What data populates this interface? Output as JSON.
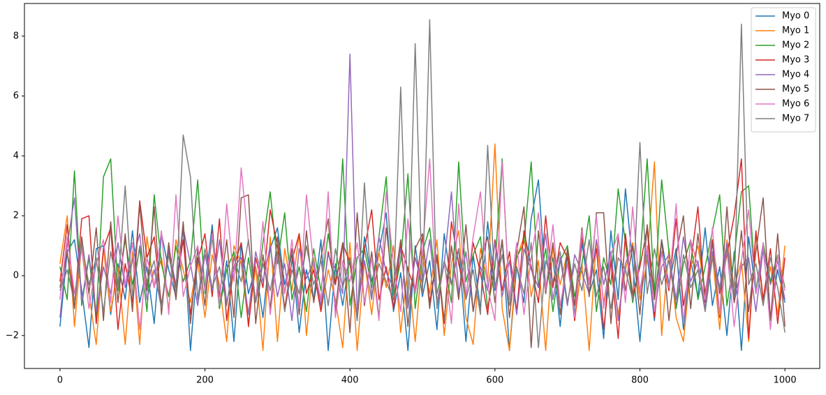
{
  "chart_data": {
    "type": "line",
    "x": [
      0,
      10,
      20,
      30,
      40,
      50,
      60,
      70,
      80,
      90,
      100,
      110,
      120,
      130,
      140,
      150,
      160,
      170,
      180,
      190,
      200,
      210,
      220,
      230,
      240,
      250,
      260,
      270,
      280,
      290,
      300,
      310,
      320,
      330,
      340,
      350,
      360,
      370,
      380,
      390,
      400,
      410,
      420,
      430,
      440,
      450,
      460,
      470,
      480,
      490,
      500,
      510,
      520,
      530,
      540,
      550,
      560,
      570,
      580,
      590,
      600,
      610,
      620,
      630,
      640,
      650,
      660,
      670,
      680,
      690,
      700,
      710,
      720,
      730,
      740,
      750,
      760,
      770,
      780,
      790,
      800,
      810,
      820,
      830,
      840,
      850,
      860,
      870,
      880,
      890,
      900,
      910,
      920,
      930,
      940,
      950,
      960,
      970,
      980,
      990,
      1000
    ],
    "series": [
      {
        "name": "Myo 0",
        "color": "#1f77b4",
        "values": [
          -1.7,
          0.8,
          1.2,
          -0.5,
          -2.4,
          0.9,
          1.0,
          -1.3,
          0.4,
          -0.8,
          1.5,
          -0.9,
          0.3,
          -1.6,
          1.4,
          0.2,
          -0.7,
          1.6,
          -2.5,
          0.6,
          -0.4,
          1.7,
          -1.1,
          0.5,
          -2.2,
          1.1,
          -0.6,
          0.3,
          -1.4,
          0.9,
          1.6,
          -0.3,
          0.7,
          -1.9,
          0.2,
          -0.8,
          1.2,
          -2.5,
          0.4,
          -1.0,
          0.6,
          -1.5,
          1.3,
          -0.2,
          0.8,
          2.1,
          -1.2,
          0.1,
          -2.5,
          1.0,
          -0.7,
          0.5,
          -1.8,
          1.4,
          -0.3,
          0.9,
          -2.2,
          0.7,
          -1.1,
          1.8,
          -0.5,
          1.2,
          -2.5,
          0.3,
          -0.9,
          1.9,
          3.2,
          -0.4,
          0.6,
          -1.7,
          0.8,
          -1.3,
          1.1,
          -0.6,
          0.2,
          -2.1,
          1.5,
          -0.8,
          2.9,
          0.4,
          -2.2,
          0.7,
          -1.5,
          1.2,
          -0.3,
          0.9,
          -1.8,
          0.5,
          -0.7,
          1.6,
          -1.0,
          0.3,
          -2.0,
          0.8,
          -2.5,
          1.3,
          -0.6,
          0.9,
          -1.4,
          0.2,
          -0.9
        ]
      },
      {
        "name": "Myo 1",
        "color": "#ff7f0e",
        "values": [
          0.4,
          2.0,
          -1.7,
          1.1,
          -0.6,
          -2.3,
          0.9,
          -1.2,
          0.3,
          -2.3,
          0.8,
          -2.3,
          1.3,
          -0.4,
          0.6,
          -1.1,
          1.2,
          0.2,
          -0.9,
          0.5,
          -1.4,
          0.7,
          -0.3,
          -2.2,
          1.0,
          0.4,
          -1.6,
          0.3,
          -2.5,
          1.3,
          -2.2,
          0.9,
          -0.5,
          1.4,
          -2.0,
          0.6,
          -1.2,
          0.2,
          -0.8,
          -2.4,
          1.1,
          -2.5,
          0.5,
          -1.3,
          0.8,
          -0.4,
          1.0,
          -1.9,
          0.3,
          -2.2,
          0.7,
          -0.6,
          1.2,
          -2.0,
          0.4,
          1.5,
          -1.4,
          -2.3,
          0.9,
          -0.2,
          4.4,
          -1.1,
          -2.5,
          0.6,
          1.3,
          -0.7,
          0.5,
          -2.5,
          1.0,
          -0.3,
          0.8,
          -1.5,
          0.4,
          -2.5,
          1.2,
          -0.9,
          0.6,
          -1.3,
          0.2,
          1.1,
          -0.8,
          0.5,
          3.8,
          -2.0,
          0.9,
          -1.4,
          -2.2,
          0.3,
          1.0,
          -0.6,
          0.7,
          -1.8,
          1.2,
          -0.4,
          0.5,
          -2.2,
          1.4,
          -0.9,
          0.3,
          -1.3,
          1.0
        ]
      },
      {
        "name": "Myo 2",
        "color": "#2ca02c",
        "values": [
          0.3,
          -0.8,
          3.5,
          -1.0,
          0.6,
          -1.4,
          3.3,
          3.9,
          -0.5,
          1.2,
          -0.3,
          0.9,
          -1.2,
          2.7,
          0.4,
          -0.7,
          1.0,
          -0.2,
          0.5,
          3.2,
          -0.6,
          1.3,
          -1.1,
          0.2,
          0.8,
          -1.4,
          0.6,
          -0.9,
          1.1,
          2.8,
          0.4,
          2.1,
          -0.8,
          0.3,
          -1.2,
          0.9,
          -0.5,
          1.4,
          -0.3,
          3.9,
          -1.0,
          0.6,
          0.9,
          -0.4,
          1.3,
          3.3,
          -0.7,
          0.5,
          3.4,
          -1.1,
          0.8,
          1.6,
          -0.6,
          0.4,
          -0.9,
          3.8,
          -0.2,
          0.7,
          1.3,
          -1.1,
          0.3,
          3.9,
          -0.8,
          0.6,
          1.1,
          3.8,
          -0.4,
          0.9,
          -1.2,
          0.5,
          1.0,
          -0.7,
          0.4,
          2.0,
          -1.2,
          0.6,
          -0.3,
          2.9,
          1.1,
          -0.9,
          0.5,
          3.9,
          -0.6,
          3.2,
          0.8,
          -1.1,
          0.4,
          1.2,
          -0.8,
          0.3,
          1.5,
          2.7,
          -1.0,
          0.6,
          2.8,
          3.0,
          -0.5,
          1.1,
          -0.2,
          0.7,
          -0.4
        ]
      },
      {
        "name": "Myo 3",
        "color": "#d62728",
        "values": [
          -0.2,
          1.7,
          -1.0,
          1.9,
          2.0,
          -1.6,
          0.9,
          1.6,
          -1.8,
          0.4,
          -0.9,
          2.5,
          0.6,
          1.3,
          -1.0,
          0.8,
          -0.4,
          1.2,
          -1.3,
          0.5,
          1.4,
          -0.7,
          1.9,
          -1.5,
          0.3,
          1.1,
          -1.7,
          0.6,
          -0.4,
          2.2,
          1.0,
          -1.1,
          0.5,
          1.4,
          -0.6,
          0.2,
          -1.2,
          0.8,
          -0.3,
          1.1,
          0.4,
          -1.4,
          0.9,
          2.2,
          -0.8,
          0.3,
          -1.1,
          1.0,
          0.2,
          -0.5,
          1.3,
          -0.9,
          0.6,
          -1.6,
          1.8,
          0.4,
          -0.7,
          1.1,
          0.1,
          -1.3,
          1.2,
          -0.5,
          0.8,
          -1.2,
          1.5,
          0.3,
          -0.9,
          2.0,
          -0.4,
          1.1,
          0.6,
          -1.5,
          1.3,
          -0.2,
          0.9,
          -1.8,
          0.5,
          -2.1,
          1.4,
          -0.7,
          0.3,
          1.6,
          -1.4,
          0.8,
          -0.5,
          1.9,
          -1.0,
          0.4,
          2.3,
          -0.9,
          1.2,
          -0.6,
          0.7,
          2.0,
          3.9,
          -2.1,
          1.5,
          -0.8,
          0.9,
          -1.6,
          0.6
        ]
      },
      {
        "name": "Myo 4",
        "color": "#9467bd",
        "values": [
          -1.4,
          1.0,
          2.6,
          -0.9,
          0.7,
          -1.2,
          0.3,
          -0.6,
          1.1,
          -0.4,
          0.5,
          1.4,
          -0.8,
          0.2,
          -1.1,
          0.9,
          -0.3,
          1.6,
          0.4,
          -1.0,
          0.7,
          -0.5,
          1.2,
          -0.9,
          0.3,
          0.6,
          -1.3,
          0.8,
          -0.2,
          1.0,
          -0.7,
          0.4,
          -1.5,
          0.9,
          -0.1,
          0.5,
          -1.0,
          0.7,
          0.2,
          -0.6,
          7.4,
          -1.2,
          0.5,
          -0.8,
          1.3,
          0.1,
          -0.4,
          0.9,
          -1.1,
          0.6,
          -0.3,
          1.2,
          -0.9,
          0.4,
          2.8,
          -0.6,
          0.8,
          -1.2,
          0.3,
          -0.5,
          1.1,
          -0.7,
          0.5,
          -1.3,
          0.9,
          0.2,
          -0.4,
          1.4,
          -0.8,
          0.6,
          -1.0,
          0.7,
          0.1,
          -0.6,
          1.2,
          -0.3,
          0.8,
          -1.5,
          0.4,
          1.0,
          -0.5,
          0.9,
          -1.2,
          0.3,
          0.7,
          -0.8,
          1.3,
          -0.2,
          0.5,
          -1.1,
          0.8,
          -0.4,
          1.1,
          -0.9,
          0.3,
          0.6,
          -1.2,
          0.9,
          -0.3,
          0.5,
          -0.8
        ]
      },
      {
        "name": "Myo 5",
        "color": "#8c564b",
        "values": [
          -0.4,
          0.8,
          -1.1,
          1.3,
          -0.6,
          1.6,
          -1.5,
          1.8,
          -0.9,
          1.4,
          -1.2,
          2.4,
          -0.5,
          2.3,
          -1.3,
          1.1,
          -0.8,
          1.8,
          -1.6,
          0.9,
          -1.0,
          1.5,
          -0.7,
          1.2,
          -1.4,
          2.6,
          2.7,
          -1.6,
          0.7,
          -1.1,
          1.3,
          -0.6,
          0.9,
          -1.3,
          1.5,
          -0.9,
          0.6,
          1.9,
          -1.2,
          1.1,
          -1.9,
          2.1,
          -1.0,
          0.8,
          -1.4,
          1.6,
          -0.5,
          1.2,
          -1.7,
          0.9,
          1.4,
          -1.1,
          0.7,
          -1.5,
          1.0,
          -0.8,
          1.7,
          -1.2,
          0.5,
          1.3,
          -0.9,
          1.2,
          -1.4,
          0.8,
          2.3,
          -2.4,
          1.5,
          -0.6,
          1.1,
          -1.3,
          0.9,
          -1.0,
          1.6,
          -0.7,
          2.1,
          2.1,
          -1.6,
          1.3,
          -0.5,
          1.0,
          -1.3,
          1.7,
          -0.8,
          1.2,
          -1.5,
          0.7,
          2.0,
          -1.1,
          1.4,
          -0.6,
          1.1,
          -1.4,
          2.3,
          -0.9,
          1.5,
          -1.2,
          0.8,
          2.6,
          -1.5,
          1.4,
          -1.7
        ]
      },
      {
        "name": "Myo 6",
        "color": "#e377c2",
        "values": [
          -0.8,
          1.3,
          -0.6,
          0.9,
          -1.1,
          0.4,
          1.2,
          -0.9,
          2.0,
          -0.3,
          1.1,
          -1.8,
          0.6,
          -0.4,
          1.5,
          -1.3,
          2.7,
          -0.7,
          0.3,
          1.0,
          -0.5,
          1.4,
          -1.0,
          2.4,
          -0.2,
          3.6,
          1.1,
          -0.9,
          1.8,
          -1.3,
          0.7,
          -0.6,
          1.2,
          -1.1,
          2.7,
          0.3,
          -0.8,
          2.8,
          -1.4,
          0.5,
          -0.2,
          1.1,
          -0.9,
          0.6,
          -1.5,
          2.8,
          0.4,
          -1.2,
          1.9,
          -0.6,
          0.8,
          3.9,
          -1.0,
          0.5,
          -1.6,
          2.4,
          -0.7,
          1.3,
          2.8,
          -0.4,
          -1.5,
          3.8,
          -0.8,
          1.1,
          -1.3,
          0.6,
          2.1,
          -0.5,
          1.7,
          -1.0,
          0.4,
          -1.4,
          1.5,
          -0.3,
          2.0,
          -1.1,
          0.7,
          1.4,
          -0.9,
          2.3,
          -0.6,
          1.0,
          -1.2,
          0.8,
          -0.4,
          2.4,
          -1.6,
          1.2,
          0.3,
          -0.8,
          1.6,
          -1.3,
          0.9,
          -1.7,
          0.5,
          2.2,
          -0.6,
          1.1,
          -1.8,
          0.7,
          -0.5
        ]
      },
      {
        "name": "Myo 7",
        "color": "#7f7f7f",
        "values": [
          -0.5,
          0.2,
          -0.9,
          1.1,
          -0.3,
          0.6,
          -1.2,
          0.8,
          -0.4,
          3.0,
          -0.7,
          1.0,
          -0.2,
          0.5,
          -1.1,
          0.7,
          -0.6,
          4.7,
          3.3,
          -0.8,
          0.9,
          -0.4,
          0.3,
          -1.0,
          0.6,
          -0.2,
          1.2,
          -0.9,
          0.4,
          -0.5,
          0.8,
          -1.2,
          0.2,
          -0.6,
          1.0,
          -0.3,
          0.5,
          -1.0,
          0.9,
          -0.4,
          0.6,
          -1.5,
          3.1,
          -0.7,
          0.4,
          -0.2,
          -0.8,
          6.3,
          -1.0,
          7.75,
          -0.6,
          8.55,
          -1.1,
          0.5,
          -0.3,
          0.9,
          -0.8,
          0.2,
          -1.3,
          4.35,
          -0.4,
          0.7,
          -1.0,
          0.3,
          -0.6,
          1.1,
          -2.4,
          0.5,
          -0.2,
          0.8,
          -0.9,
          0.4,
          -0.5,
          1.2,
          -0.7,
          0.3,
          -1.1,
          0.6,
          0.2,
          -0.8,
          4.45,
          -0.6,
          0.9,
          -0.3,
          0.5,
          -1.0,
          0.7,
          -0.4,
          0.2,
          -1.2,
          0.6,
          -0.5,
          0.9,
          -0.7,
          8.4,
          -0.3,
          0.4,
          -1.0,
          0.6,
          -0.4,
          -1.9
        ]
      }
    ],
    "xlim": [
      -49,
      1048
    ],
    "xticks": [
      0,
      200,
      400,
      600,
      800,
      1000
    ],
    "ylim": [
      -3.1,
      9.09
    ],
    "yticks": [
      {
        "value": -2,
        "label": "−2"
      },
      0,
      2,
      4,
      6,
      8
    ],
    "legend": "upper right",
    "grid": false
  }
}
